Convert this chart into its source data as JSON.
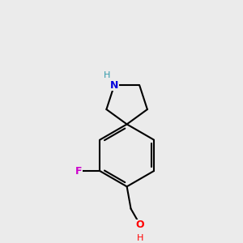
{
  "bg_color": "#ebebeb",
  "bond_color": "#000000",
  "N_color": "#0000dd",
  "F_color": "#cc00cc",
  "O_color": "#ff0000",
  "NH_color": "#3399aa",
  "line_width": 1.5,
  "figsize": [
    3.0,
    3.0
  ],
  "dpi": 100,
  "xlim": [
    -1.4,
    1.4
  ],
  "ylim": [
    -2.4,
    1.8
  ]
}
